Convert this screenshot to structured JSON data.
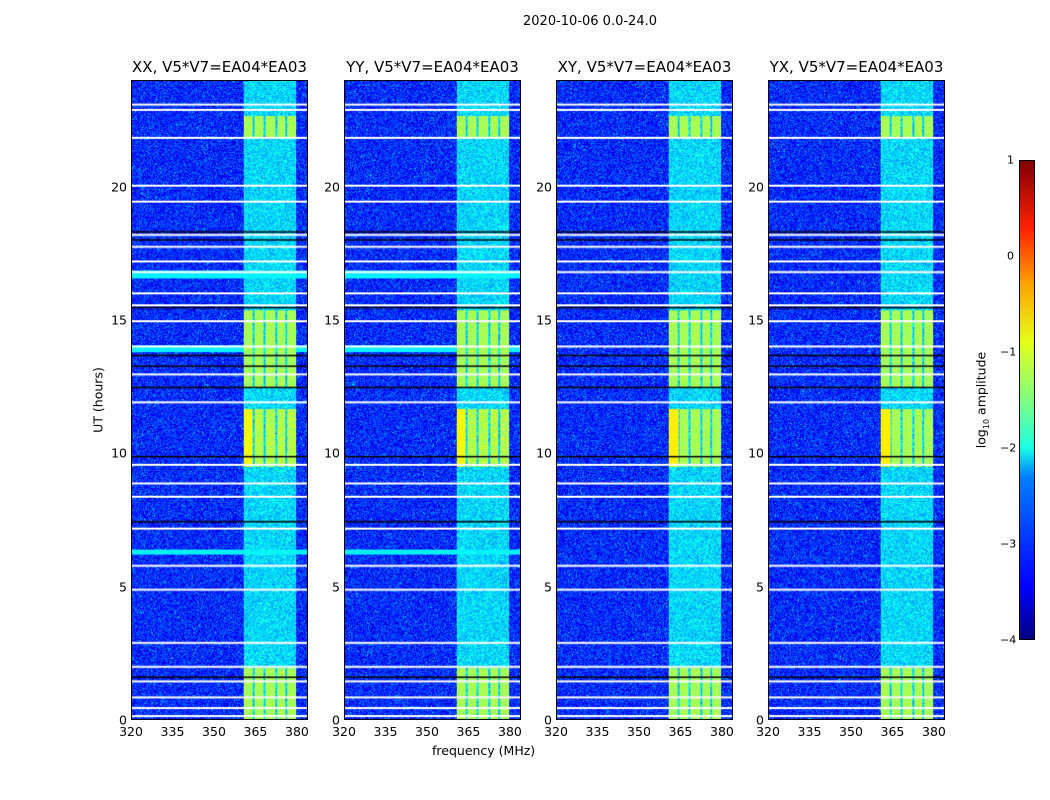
{
  "chart_data": {
    "type": "heatmap",
    "title": "2020-10-06 0.0-24.0",
    "xlabel": "frequency (MHz)",
    "ylabel": "UT (hours)",
    "xlim": [
      320,
      384
    ],
    "ylim": [
      0,
      24
    ],
    "xticks": [
      "320",
      "335",
      "350",
      "365",
      "380"
    ],
    "xtick_values": [
      320,
      335,
      350,
      365,
      380
    ],
    "yticks": [
      "0",
      "5",
      "10",
      "15",
      "20"
    ],
    "ytick_values": [
      0,
      5,
      10,
      15,
      20
    ],
    "panels": [
      {
        "title": "XX, V5*V7=EA04*EA03"
      },
      {
        "title": "YY, V5*V7=EA04*EA03"
      },
      {
        "title": "XY, V5*V7=EA04*EA03"
      },
      {
        "title": "YX, V5*V7=EA04*EA03"
      }
    ],
    "colorbar": {
      "label_main": "log",
      "label_sub": "10",
      "label_rest": " amplitude",
      "range": [
        -4,
        1
      ],
      "ticks": [
        "1",
        "0",
        "−1",
        "−2",
        "−3",
        "−4"
      ],
      "tick_values": [
        1,
        0,
        -1,
        -2,
        -3,
        -4
      ],
      "colormap": "jet"
    },
    "rfi_band_mhz": [
      360.5,
      380
    ],
    "background_log_amplitude": -3.2,
    "flagged_hours": [
      0.15,
      0.45,
      0.85,
      1.45,
      2.0,
      2.9,
      4.9,
      5.8,
      7.2,
      8.4,
      8.9,
      9.6,
      11.95,
      13.0,
      14.05,
      15.0,
      15.6,
      16.05,
      16.85,
      17.25,
      17.8,
      18.25,
      19.5,
      20.1,
      21.9,
      22.95,
      23.15
    ],
    "zero_hours": [
      1.6,
      7.45,
      9.9,
      12.5,
      13.3,
      13.7,
      15.5,
      18.05,
      18.35
    ],
    "bright_periods_hours": [
      [
        0,
        1.95
      ],
      [
        9.5,
        11.7
      ],
      [
        12.5,
        15.4
      ]
    ]
  }
}
